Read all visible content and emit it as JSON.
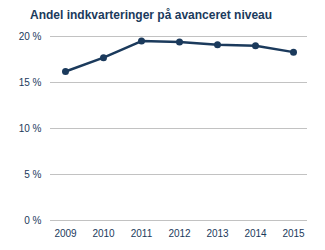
{
  "chart_data": {
    "type": "line",
    "title": "Andel indkvarteringer på avanceret niveau",
    "categories": [
      "2009",
      "2010",
      "2011",
      "2012",
      "2013",
      "2014",
      "2015"
    ],
    "values": [
      16.2,
      17.7,
      19.5,
      19.4,
      19.1,
      19.0,
      18.3
    ],
    "color": "#1b3a5c",
    "marker": "circle",
    "ylim": [
      0,
      20
    ],
    "yticks": [
      {
        "value": 0,
        "label": "0 %"
      },
      {
        "value": 5,
        "label": "5 %"
      },
      {
        "value": 10,
        "label": "10 %"
      },
      {
        "value": 15,
        "label": "15 %"
      },
      {
        "value": 20,
        "label": "20 %"
      }
    ],
    "grid": true
  }
}
